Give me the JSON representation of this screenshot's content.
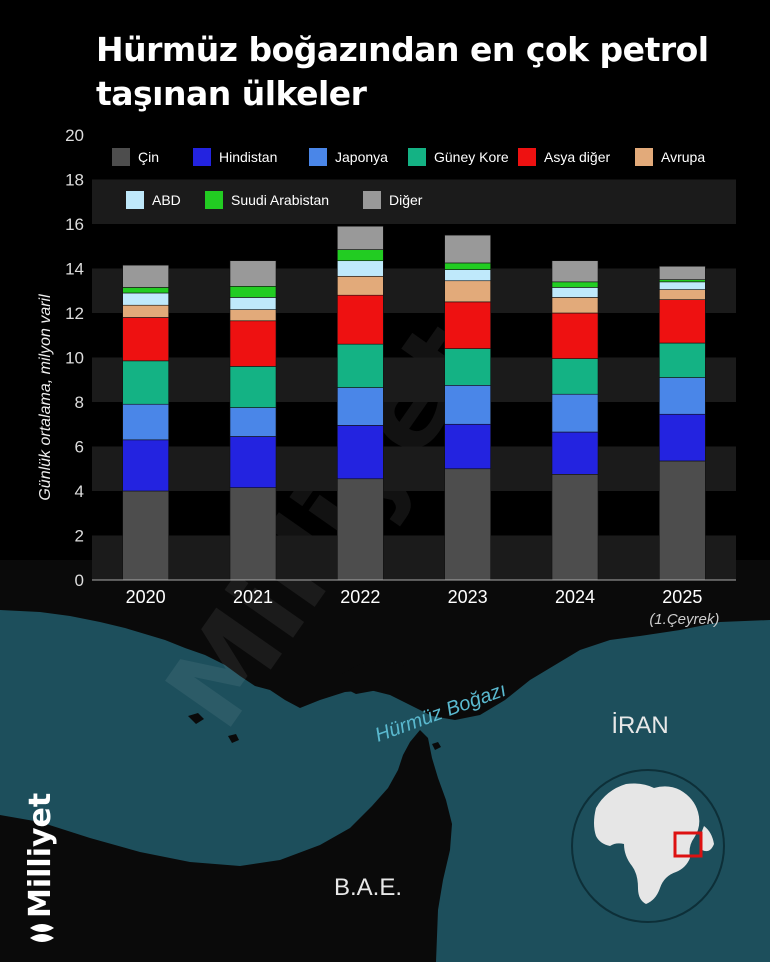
{
  "title": "Hürmüz boğazından en çok petrol taşınan ülkeler",
  "chart_data": {
    "type": "bar",
    "stacked": true,
    "title": "Hürmüz boğazından en çok petrol taşınan ülkeler",
    "ylabel": "Günlük ortalama, milyon varil",
    "xlabel": "",
    "ylim": [
      0,
      20
    ],
    "yticks": [
      0,
      2,
      4,
      6,
      8,
      10,
      12,
      14,
      16,
      18,
      20
    ],
    "categories": [
      "2020",
      "2021",
      "2022",
      "2023",
      "2024",
      "2025"
    ],
    "category_notes": [
      "",
      "",
      "",
      "",
      "",
      "(1.Çeyrek)"
    ],
    "legend_position": "top",
    "grid": "horizontal bands",
    "series": [
      {
        "name": "Çin",
        "color": "#4d4d4d",
        "values": [
          4.0,
          4.15,
          4.55,
          5.0,
          4.75,
          5.35
        ]
      },
      {
        "name": "Hindistan",
        "color": "#2323e0",
        "values": [
          2.3,
          2.3,
          2.4,
          2.0,
          1.9,
          2.1
        ]
      },
      {
        "name": "Japonya",
        "color": "#4a86e8",
        "values": [
          1.6,
          1.3,
          1.7,
          1.75,
          1.7,
          1.65
        ]
      },
      {
        "name": "Güney Kore",
        "color": "#14b284",
        "values": [
          1.95,
          1.85,
          1.95,
          1.65,
          1.6,
          1.55
        ]
      },
      {
        "name": "Asya diğer",
        "color": "#ee1111",
        "values": [
          1.95,
          2.05,
          2.2,
          2.1,
          2.05,
          1.95
        ]
      },
      {
        "name": "Avrupa",
        "color": "#e2aa7a",
        "values": [
          0.55,
          0.5,
          0.85,
          0.95,
          0.7,
          0.45
        ]
      },
      {
        "name": "ABD",
        "color": "#bfe9fb",
        "values": [
          0.55,
          0.55,
          0.7,
          0.5,
          0.45,
          0.35
        ]
      },
      {
        "name": "Suudi Arabistan",
        "color": "#22cc22",
        "values": [
          0.25,
          0.5,
          0.5,
          0.3,
          0.25,
          0.1
        ]
      },
      {
        "name": "Diğer",
        "color": "#999999",
        "values": [
          1.0,
          1.15,
          1.05,
          1.25,
          0.95,
          0.6
        ]
      }
    ]
  },
  "map": {
    "country_label_iran": "İRAN",
    "country_label_uae": "B.A.E.",
    "strait_label": "Hürmüz Boğazı",
    "sea_color": "#1d4f5c",
    "land_color": "#111111"
  },
  "brand": "Milliyet",
  "watermark": "Milliyet"
}
